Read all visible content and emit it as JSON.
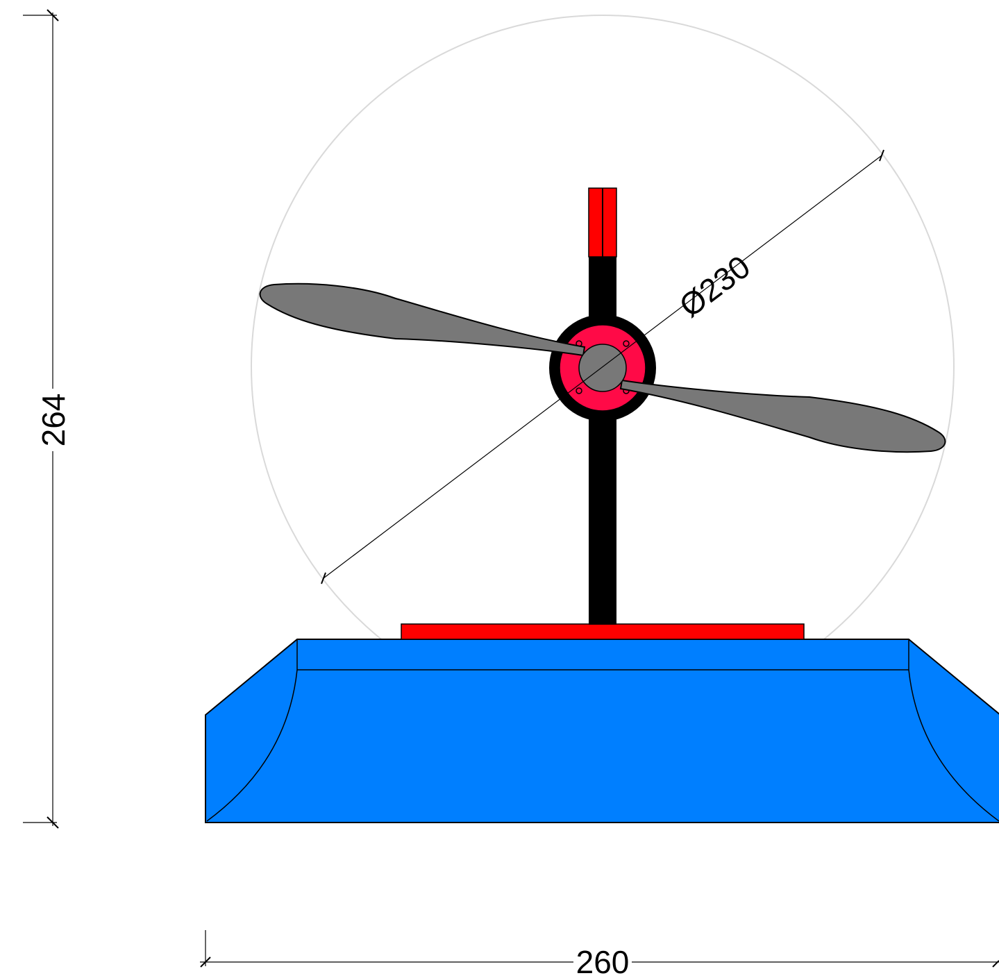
{
  "drawing": {
    "dimensions": {
      "height_label": "264",
      "width_label": "260",
      "diameter_label": "Ø230"
    },
    "colors": {
      "base": "#007fff",
      "plate": "#ff0000",
      "post": "#000000",
      "hub_ring": "#000000",
      "hub_flange": "#ff0a47",
      "propeller": "#787878",
      "sweep_circle": "#d9d9d9",
      "dimension_line": "#000000"
    },
    "icons": [
      "propeller-icon"
    ]
  }
}
